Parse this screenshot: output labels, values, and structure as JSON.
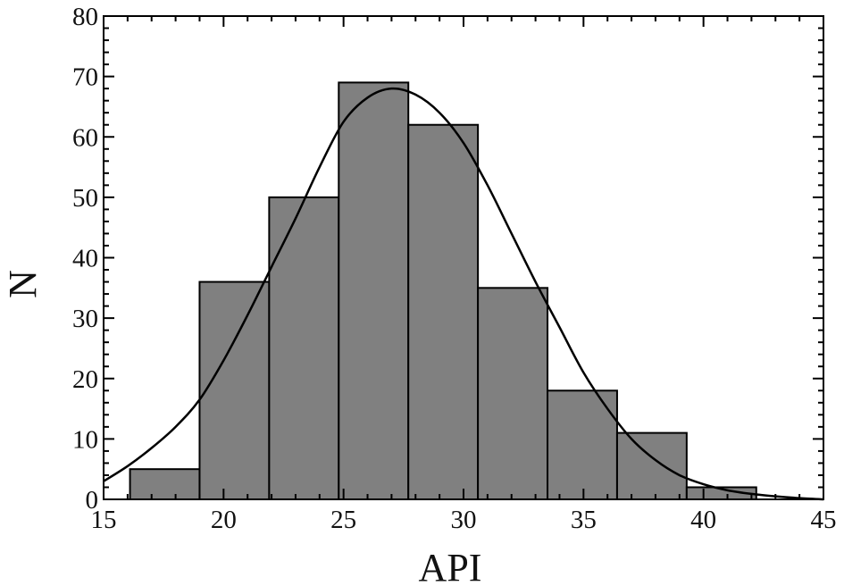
{
  "chart_data": {
    "type": "bar",
    "histogram": true,
    "xlabel": "API",
    "ylabel": "N",
    "xlim": [
      15,
      45
    ],
    "ylim": [
      0,
      80
    ],
    "x_ticks": [
      15,
      20,
      25,
      30,
      35,
      40,
      45
    ],
    "y_ticks": [
      0,
      10,
      20,
      30,
      40,
      50,
      60,
      70,
      80
    ],
    "bins": [
      {
        "x0": 16.1,
        "x1": 19.0,
        "count": 5
      },
      {
        "x0": 19.0,
        "x1": 21.9,
        "count": 36
      },
      {
        "x0": 21.9,
        "x1": 24.8,
        "count": 50
      },
      {
        "x0": 24.8,
        "x1": 27.7,
        "count": 69
      },
      {
        "x0": 27.7,
        "x1": 30.6,
        "count": 62
      },
      {
        "x0": 30.6,
        "x1": 33.5,
        "count": 35
      },
      {
        "x0": 33.5,
        "x1": 36.4,
        "count": 18
      },
      {
        "x0": 36.4,
        "x1": 39.3,
        "count": 11
      },
      {
        "x0": 39.3,
        "x1": 42.2,
        "count": 2
      }
    ],
    "fit_curve": {
      "x": [
        15,
        16,
        17,
        18,
        19,
        20,
        21,
        22,
        23,
        24,
        25,
        26,
        27,
        28,
        29,
        30,
        31,
        32,
        33,
        34,
        35,
        36,
        37,
        38,
        39,
        40,
        41,
        42,
        43,
        44,
        45
      ],
      "y": [
        3,
        5.5,
        8.5,
        12,
        16.5,
        23,
        30.5,
        38.5,
        46.5,
        55,
        62.5,
        66.5,
        68,
        67,
        64,
        59,
        52,
        44,
        36,
        28.5,
        21,
        15,
        10,
        6.5,
        4,
        2.5,
        1.5,
        0.9,
        0.5,
        0.2,
        0
      ]
    },
    "colors": {
      "bar_fill": "#808080",
      "bar_stroke": "#000000",
      "curve": "#000000",
      "axis": "#000000"
    },
    "grid": false
  }
}
